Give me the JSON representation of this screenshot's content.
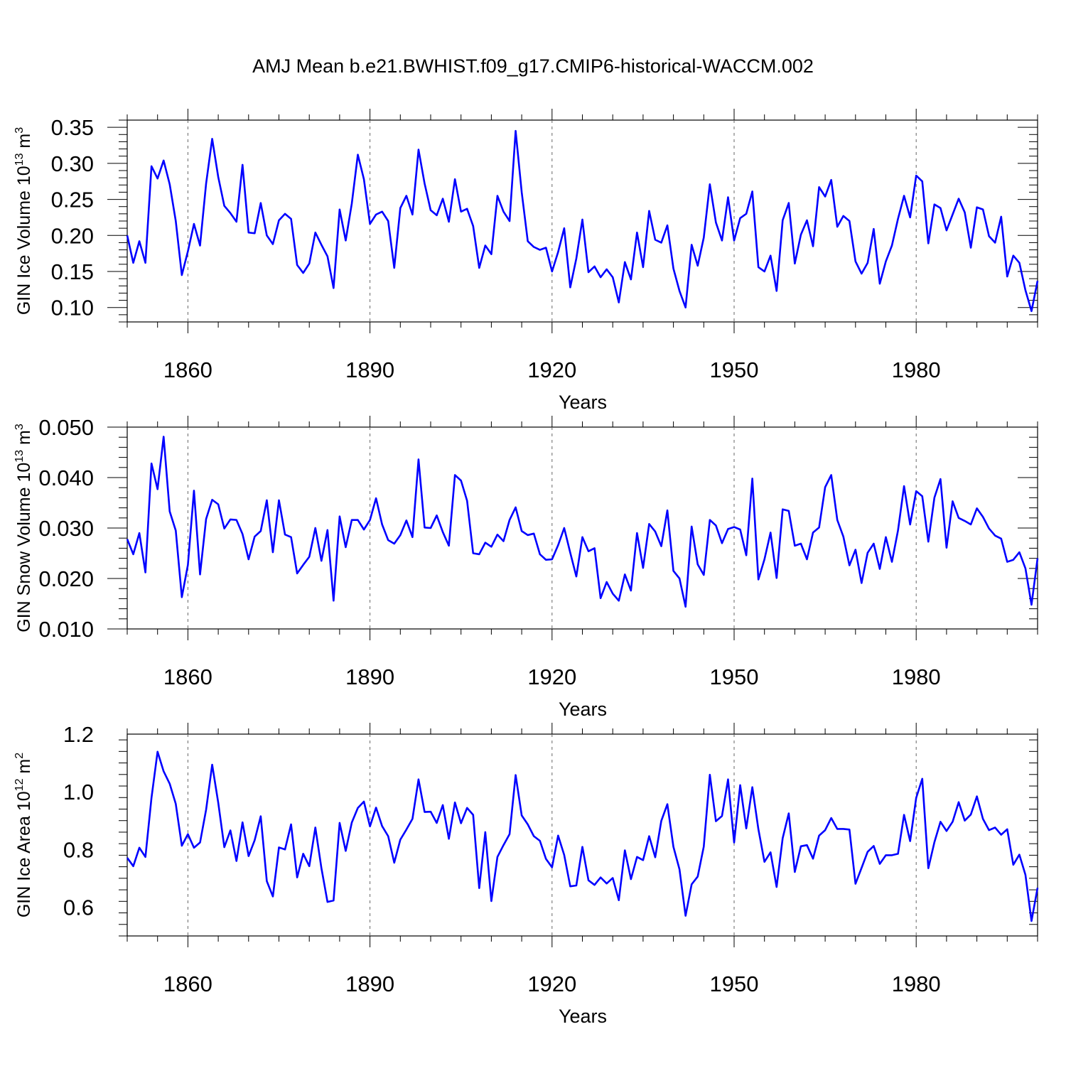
{
  "title": "AMJ Mean b.e21.BWHIST.f09_g17.CMIP6-historical-WACCM.002",
  "colors": {
    "series": "#0000ff",
    "axis": "#000000",
    "grid": "#666666"
  },
  "chart_data": [
    {
      "type": "line",
      "ylabel_main": "GIN Ice Volume 10",
      "ylabel_exp": "13",
      "ylabel_unit": " m",
      "ylabel_unit_exp": "3",
      "xlabel": "Years",
      "xlim": [
        1850,
        2000
      ],
      "ylim": [
        0.08,
        0.36
      ],
      "yticks": [
        0.1,
        0.15,
        0.2,
        0.25,
        0.3,
        0.35
      ],
      "ytick_labels": [
        "0.10",
        "0.15",
        "0.20",
        "0.25",
        "0.30",
        "0.35"
      ],
      "xticks": [
        1860,
        1890,
        1920,
        1950,
        1980
      ],
      "xtick_labels": [
        "1860",
        "1890",
        "1920",
        "1950",
        "1980"
      ],
      "x_start": 1850,
      "values": [
        0.2,
        0.162,
        0.192,
        0.162,
        0.296,
        0.279,
        0.304,
        0.271,
        0.22,
        0.145,
        0.178,
        0.216,
        0.186,
        0.272,
        0.334,
        0.281,
        0.241,
        0.231,
        0.219,
        0.298,
        0.204,
        0.203,
        0.245,
        0.2,
        0.188,
        0.221,
        0.23,
        0.223,
        0.159,
        0.148,
        0.161,
        0.204,
        0.187,
        0.171,
        0.127,
        0.236,
        0.193,
        0.244,
        0.312,
        0.278,
        0.216,
        0.229,
        0.233,
        0.22,
        0.155,
        0.238,
        0.255,
        0.229,
        0.319,
        0.272,
        0.235,
        0.228,
        0.251,
        0.219,
        0.278,
        0.233,
        0.237,
        0.213,
        0.155,
        0.186,
        0.174,
        0.255,
        0.233,
        0.22,
        0.345,
        0.26,
        0.192,
        0.184,
        0.18,
        0.183,
        0.15,
        0.177,
        0.21,
        0.128,
        0.168,
        0.222,
        0.149,
        0.157,
        0.142,
        0.153,
        0.142,
        0.107,
        0.163,
        0.139,
        0.204,
        0.156,
        0.234,
        0.194,
        0.19,
        0.214,
        0.154,
        0.123,
        0.1,
        0.187,
        0.158,
        0.197,
        0.271,
        0.218,
        0.193,
        0.253,
        0.193,
        0.224,
        0.23,
        0.261,
        0.156,
        0.15,
        0.172,
        0.123,
        0.221,
        0.245,
        0.161,
        0.201,
        0.221,
        0.185,
        0.267,
        0.254,
        0.277,
        0.212,
        0.227,
        0.22,
        0.164,
        0.147,
        0.162,
        0.209,
        0.133,
        0.164,
        0.186,
        0.223,
        0.255,
        0.225,
        0.283,
        0.275,
        0.189,
        0.243,
        0.238,
        0.207,
        0.229,
        0.251,
        0.232,
        0.183,
        0.239,
        0.236,
        0.199,
        0.19,
        0.226,
        0.143,
        0.172,
        0.162,
        0.124,
        0.095,
        0.137
      ]
    },
    {
      "type": "line",
      "ylabel_main": "GIN Snow Volume 10",
      "ylabel_exp": "13",
      "ylabel_unit": " m",
      "ylabel_unit_exp": "3",
      "xlabel": "Years",
      "xlim": [
        1850,
        2000
      ],
      "ylim": [
        0.01,
        0.05
      ],
      "yticks": [
        0.01,
        0.02,
        0.03,
        0.04,
        0.05
      ],
      "ytick_labels": [
        "0.010",
        "0.020",
        "0.030",
        "0.040",
        "0.050"
      ],
      "xticks": [
        1860,
        1890,
        1920,
        1950,
        1980
      ],
      "xtick_labels": [
        "1860",
        "1890",
        "1920",
        "1950",
        "1980"
      ],
      "x_start": 1850,
      "values": [
        0.0278,
        0.0248,
        0.029,
        0.0212,
        0.0428,
        0.0377,
        0.0481,
        0.0333,
        0.0295,
        0.0163,
        0.0227,
        0.0374,
        0.0208,
        0.0318,
        0.0356,
        0.0347,
        0.0299,
        0.0317,
        0.0316,
        0.0288,
        0.0238,
        0.0283,
        0.0294,
        0.0355,
        0.0252,
        0.0355,
        0.0287,
        0.0282,
        0.021,
        0.0227,
        0.0243,
        0.03,
        0.0235,
        0.0296,
        0.0156,
        0.0323,
        0.0262,
        0.0316,
        0.0316,
        0.0297,
        0.0316,
        0.0359,
        0.0307,
        0.0276,
        0.0269,
        0.0286,
        0.0315,
        0.0282,
        0.0436,
        0.0301,
        0.03,
        0.0325,
        0.0292,
        0.0265,
        0.0405,
        0.0394,
        0.0354,
        0.025,
        0.0248,
        0.0271,
        0.0263,
        0.0287,
        0.0274,
        0.0316,
        0.0341,
        0.0294,
        0.0286,
        0.0289,
        0.0248,
        0.0237,
        0.0238,
        0.0266,
        0.03,
        0.0251,
        0.0204,
        0.0282,
        0.0254,
        0.026,
        0.0161,
        0.0193,
        0.017,
        0.0156,
        0.0208,
        0.0176,
        0.029,
        0.0221,
        0.0308,
        0.0293,
        0.0264,
        0.0335,
        0.0215,
        0.02,
        0.0144,
        0.0303,
        0.0228,
        0.0207,
        0.0316,
        0.0305,
        0.027,
        0.0298,
        0.0302,
        0.0297,
        0.0246,
        0.0398,
        0.0198,
        0.0238,
        0.0291,
        0.0201,
        0.0337,
        0.0334,
        0.0265,
        0.0269,
        0.0238,
        0.0291,
        0.0301,
        0.0381,
        0.0405,
        0.0316,
        0.0283,
        0.0226,
        0.0257,
        0.0191,
        0.0251,
        0.0269,
        0.0219,
        0.0282,
        0.0233,
        0.0295,
        0.0383,
        0.0307,
        0.0373,
        0.0363,
        0.0273,
        0.036,
        0.0397,
        0.0261,
        0.0353,
        0.032,
        0.0314,
        0.0307,
        0.0339,
        0.0322,
        0.0299,
        0.0285,
        0.0279,
        0.0233,
        0.0237,
        0.0252,
        0.022,
        0.0148,
        0.024
      ]
    },
    {
      "type": "line",
      "ylabel_main": "GIN Ice Area 10",
      "ylabel_exp": "12",
      "ylabel_unit": " m",
      "ylabel_unit_exp": "2",
      "xlabel": "Years",
      "xlim": [
        1850,
        2000
      ],
      "ylim": [
        0.5,
        1.2
      ],
      "yticks": [
        0.6,
        0.8,
        1.0,
        1.2
      ],
      "ytick_labels": [
        "0.6",
        "0.8",
        "1.0",
        "1.2"
      ],
      "xticks": [
        1860,
        1890,
        1920,
        1950,
        1980
      ],
      "xtick_labels": [
        "1860",
        "1890",
        "1920",
        "1950",
        "1980"
      ],
      "x_start": 1850,
      "values": [
        0.771,
        0.742,
        0.806,
        0.774,
        0.979,
        1.139,
        1.071,
        1.028,
        0.958,
        0.813,
        0.853,
        0.806,
        0.824,
        0.938,
        1.094,
        0.962,
        0.808,
        0.866,
        0.76,
        0.894,
        0.777,
        0.832,
        0.915,
        0.69,
        0.637,
        0.807,
        0.8,
        0.887,
        0.703,
        0.785,
        0.742,
        0.876,
        0.735,
        0.618,
        0.623,
        0.892,
        0.795,
        0.893,
        0.944,
        0.966,
        0.88,
        0.945,
        0.881,
        0.846,
        0.754,
        0.834,
        0.869,
        0.906,
        1.043,
        0.93,
        0.931,
        0.892,
        0.954,
        0.837,
        0.963,
        0.891,
        0.944,
        0.92,
        0.666,
        0.86,
        0.621,
        0.774,
        0.815,
        0.853,
        1.058,
        0.918,
        0.887,
        0.846,
        0.83,
        0.767,
        0.738,
        0.848,
        0.781,
        0.672,
        0.675,
        0.809,
        0.693,
        0.677,
        0.703,
        0.682,
        0.701,
        0.624,
        0.797,
        0.697,
        0.774,
        0.763,
        0.846,
        0.773,
        0.899,
        0.957,
        0.809,
        0.731,
        0.57,
        0.679,
        0.706,
        0.81,
        1.059,
        0.898,
        0.916,
        1.043,
        0.824,
        1.023,
        0.873,
        1.016,
        0.87,
        0.757,
        0.79,
        0.67,
        0.839,
        0.925,
        0.722,
        0.811,
        0.815,
        0.768,
        0.848,
        0.867,
        0.909,
        0.871,
        0.871,
        0.869,
        0.681,
        0.736,
        0.792,
        0.812,
        0.75,
        0.78,
        0.78,
        0.785,
        0.92,
        0.829,
        0.979,
        1.045,
        0.735,
        0.825,
        0.896,
        0.864,
        0.896,
        0.964,
        0.9,
        0.921,
        0.984,
        0.906,
        0.867,
        0.876,
        0.851,
        0.87,
        0.747,
        0.782,
        0.712,
        0.552,
        0.667
      ]
    }
  ]
}
